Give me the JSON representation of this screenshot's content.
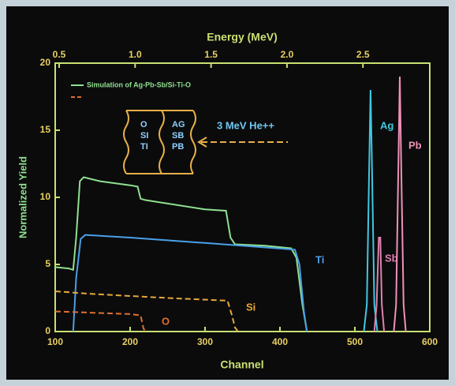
{
  "chart_data": {
    "type": "line",
    "title": "Energy (MeV)",
    "x_label": "Channel",
    "y_label": "Normalized Yield",
    "xlim": [
      100,
      600
    ],
    "xticks": [
      100,
      200,
      300,
      400,
      500,
      600
    ],
    "ylim": [
      0,
      20
    ],
    "yticks": [
      0,
      5,
      10,
      15,
      20
    ],
    "x2lim": [
      0.474,
      2.94
    ],
    "x2ticks": [
      0.5,
      {
        "value": 1.0,
        "label": "1.0"
      },
      1.5,
      {
        "value": 2.0,
        "label": "2.0"
      },
      2.5
    ],
    "annotations": {
      "sample_left": [
        "O",
        "SI",
        "TI"
      ],
      "sample_right": [
        "AG",
        "SB",
        "PB"
      ],
      "beam": "3 MeV He++"
    },
    "series": [
      {
        "name": "Simulation of Ag-Pb-Sb/Si-Ti-O",
        "color": "#8fe08f",
        "dash": false,
        "legend": true,
        "x": [
          100,
          118,
          124,
          128,
          133,
          138,
          160,
          200,
          210,
          214,
          220,
          300,
          328,
          334,
          340,
          380,
          415,
          422,
          430,
          436
        ],
        "values": [
          4.8,
          4.7,
          4.6,
          7,
          11.2,
          11.5,
          11.2,
          10.9,
          10.8,
          9.9,
          9.8,
          9.1,
          9.0,
          7,
          6.5,
          6.4,
          6.2,
          5.5,
          2,
          0
        ]
      },
      {
        "name": "Ti",
        "color": "#4aa0e8",
        "dash": false,
        "legend": false,
        "x": [
          124,
          128,
          134,
          140,
          200,
          300,
          420,
          426,
          432,
          436
        ],
        "values": [
          0,
          4,
          6.9,
          7.2,
          7.0,
          6.6,
          6.1,
          5,
          1.5,
          0
        ]
      },
      {
        "name": "Si",
        "color": "#e8a83a",
        "dash": true,
        "legend": false,
        "x": [
          100,
          150,
          250,
          330,
          336,
          340,
          344
        ],
        "values": [
          3,
          2.8,
          2.5,
          2.3,
          1.2,
          0.3,
          0
        ]
      },
      {
        "name": "O",
        "color": "#e07030",
        "dash": true,
        "legend": false,
        "x": [
          100,
          150,
          200,
          214,
          218,
          222
        ],
        "values": [
          1.5,
          1.4,
          1.3,
          1.2,
          0.2,
          0
        ]
      },
      {
        "name": "Ag",
        "color": "#40c8e0",
        "dash": false,
        "legend": false,
        "x": [
          512,
          516,
          519,
          521,
          523,
          526,
          530
        ],
        "values": [
          0,
          2,
          12,
          18,
          12,
          2,
          0
        ]
      },
      {
        "name": "Sb",
        "color": "#e080b0",
        "dash": false,
        "legend": false,
        "x": [
          526,
          529,
          532,
          534,
          536,
          539
        ],
        "values": [
          0,
          2,
          7,
          7,
          2,
          0
        ]
      },
      {
        "name": "Pb",
        "color": "#f090b8",
        "dash": false,
        "legend": false,
        "x": [
          552,
          555,
          558,
          560,
          562,
          565,
          568
        ],
        "values": [
          0,
          2,
          12,
          19,
          12,
          2,
          0
        ]
      }
    ]
  }
}
